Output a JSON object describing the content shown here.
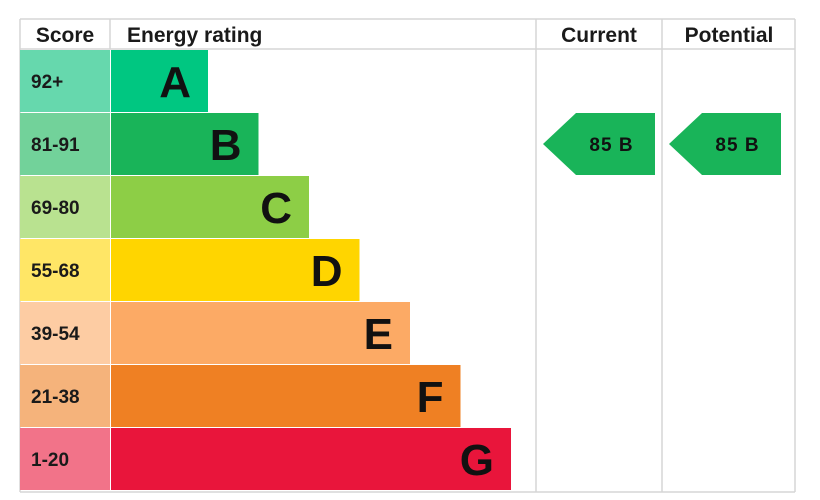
{
  "chart_data": {
    "type": "bar",
    "headers": {
      "score": "Score",
      "energy_rating": "Energy rating",
      "current": "Current",
      "potential": "Potential"
    },
    "bands": [
      {
        "score": "92+",
        "letter": "A",
        "color": "#00c781",
        "score_bg": "#66d8ad"
      },
      {
        "score": "81-91",
        "letter": "B",
        "color": "#19b459",
        "score_bg": "#72d29a"
      },
      {
        "score": "69-80",
        "letter": "C",
        "color": "#8dce46",
        "score_bg": "#b9e290"
      },
      {
        "score": "55-68",
        "letter": "D",
        "color": "#ffd500",
        "score_bg": "#ffe666"
      },
      {
        "score": "39-54",
        "letter": "E",
        "color": "#fcaa65",
        "score_bg": "#fdcca3"
      },
      {
        "score": "21-38",
        "letter": "F",
        "color": "#ef8023",
        "score_bg": "#f5b37b"
      },
      {
        "score": "1-20",
        "letter": "G",
        "color": "#e9153b",
        "score_bg": "#f27389"
      }
    ],
    "current": {
      "score": 85,
      "letter": "B",
      "label": "85 B",
      "color": "#19b459"
    },
    "potential": {
      "score": 85,
      "letter": "B",
      "label": "85 B",
      "color": "#19b459"
    }
  }
}
